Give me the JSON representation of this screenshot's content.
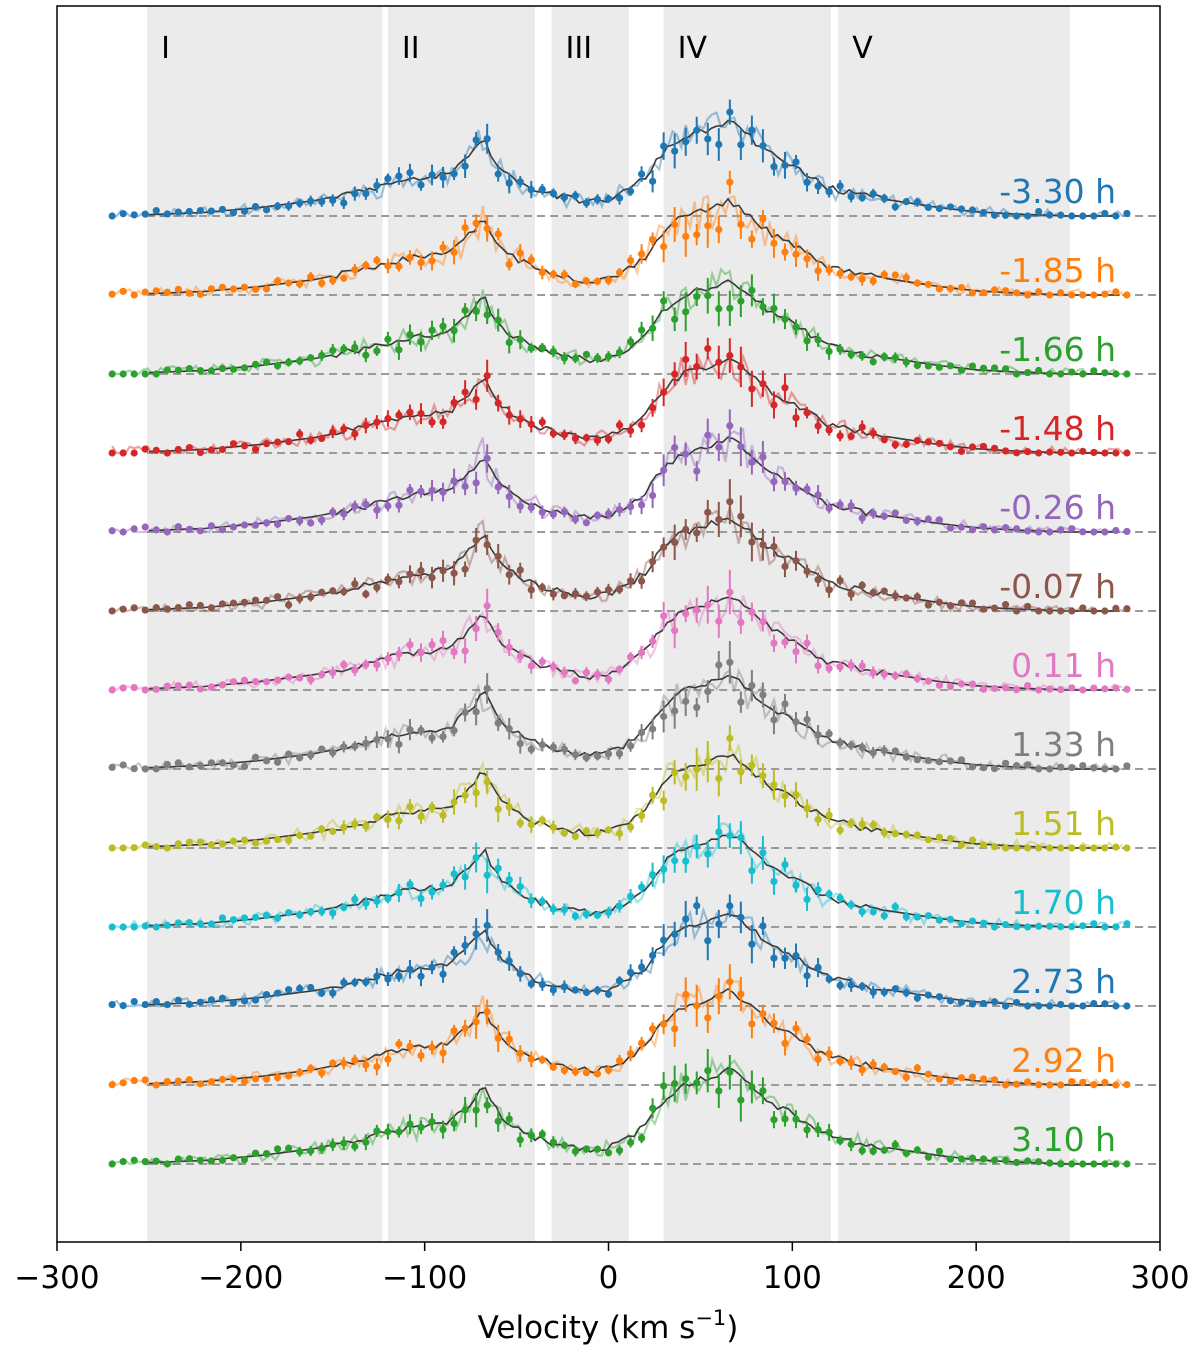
{
  "chart_data": {
    "type": "line",
    "title": "",
    "xlabel": "Velocity (km s",
    "xlabel_sup": "−1",
    "xlabel_close": ")",
    "ylabel": "",
    "xlim": [
      -300,
      300
    ],
    "x_ticks": [
      -300,
      -200,
      -100,
      0,
      100,
      200,
      300
    ],
    "x_tick_labels": [
      "−300",
      "−200",
      "−100",
      "0",
      "100",
      "200",
      "300"
    ],
    "grid": false,
    "regions": [
      {
        "label": "I",
        "range": [
          -251,
          -123
        ]
      },
      {
        "label": "II",
        "range": [
          -120,
          -40
        ]
      },
      {
        "label": "III",
        "range": [
          -31,
          11
        ]
      },
      {
        "label": "IV",
        "range": [
          30,
          121
        ]
      },
      {
        "label": "V",
        "range": [
          125,
          251
        ]
      }
    ],
    "mean_profile": {
      "color": "#3a3a3a",
      "x": [
        -250,
        -220,
        -190,
        -160,
        -130,
        -110,
        -95,
        -85,
        -78,
        -72,
        -68,
        -64,
        -58,
        -50,
        -40,
        -30,
        -20,
        -10,
        0,
        10,
        20,
        30,
        40,
        50,
        60,
        66,
        72,
        80,
        90,
        100,
        110,
        120,
        140,
        160,
        180,
        200,
        220,
        250
      ],
      "y": [
        0.02,
        0.05,
        0.12,
        0.22,
        0.38,
        0.52,
        0.55,
        0.62,
        0.8,
        0.95,
        1.12,
        0.9,
        0.66,
        0.52,
        0.38,
        0.3,
        0.24,
        0.2,
        0.24,
        0.36,
        0.55,
        0.92,
        1.12,
        1.2,
        1.28,
        1.34,
        1.25,
        1.05,
        0.85,
        0.72,
        0.55,
        0.4,
        0.28,
        0.2,
        0.12,
        0.06,
        0.03,
        0.0
      ]
    },
    "series": [
      {
        "name": "-3.30 h",
        "color": "#1f77b4",
        "seed": 11
      },
      {
        "name": "-1.85 h",
        "color": "#ff7f0e",
        "seed": 23
      },
      {
        "name": "-1.66 h",
        "color": "#2ca02c",
        "seed": 37
      },
      {
        "name": "-1.48 h",
        "color": "#d62728",
        "seed": 41
      },
      {
        "name": "-0.26 h",
        "color": "#9467bd",
        "seed": 53
      },
      {
        "name": "-0.07 h",
        "color": "#8c564b",
        "seed": 67
      },
      {
        "name": "0.11 h",
        "color": "#e377c2",
        "seed": 71
      },
      {
        "name": "1.33 h",
        "color": "#7f7f7f",
        "seed": 83
      },
      {
        "name": "1.51 h",
        "color": "#bcbd22",
        "seed": 97
      },
      {
        "name": "1.70 h",
        "color": "#17becf",
        "seed": 101
      },
      {
        "name": "2.73 h",
        "color": "#1f77b4",
        "seed": 113
      },
      {
        "name": "2.92 h",
        "color": "#ff7f0e",
        "seed": 127
      },
      {
        "name": "3.10 h",
        "color": "#2ca02c",
        "seed": 131
      }
    ]
  }
}
